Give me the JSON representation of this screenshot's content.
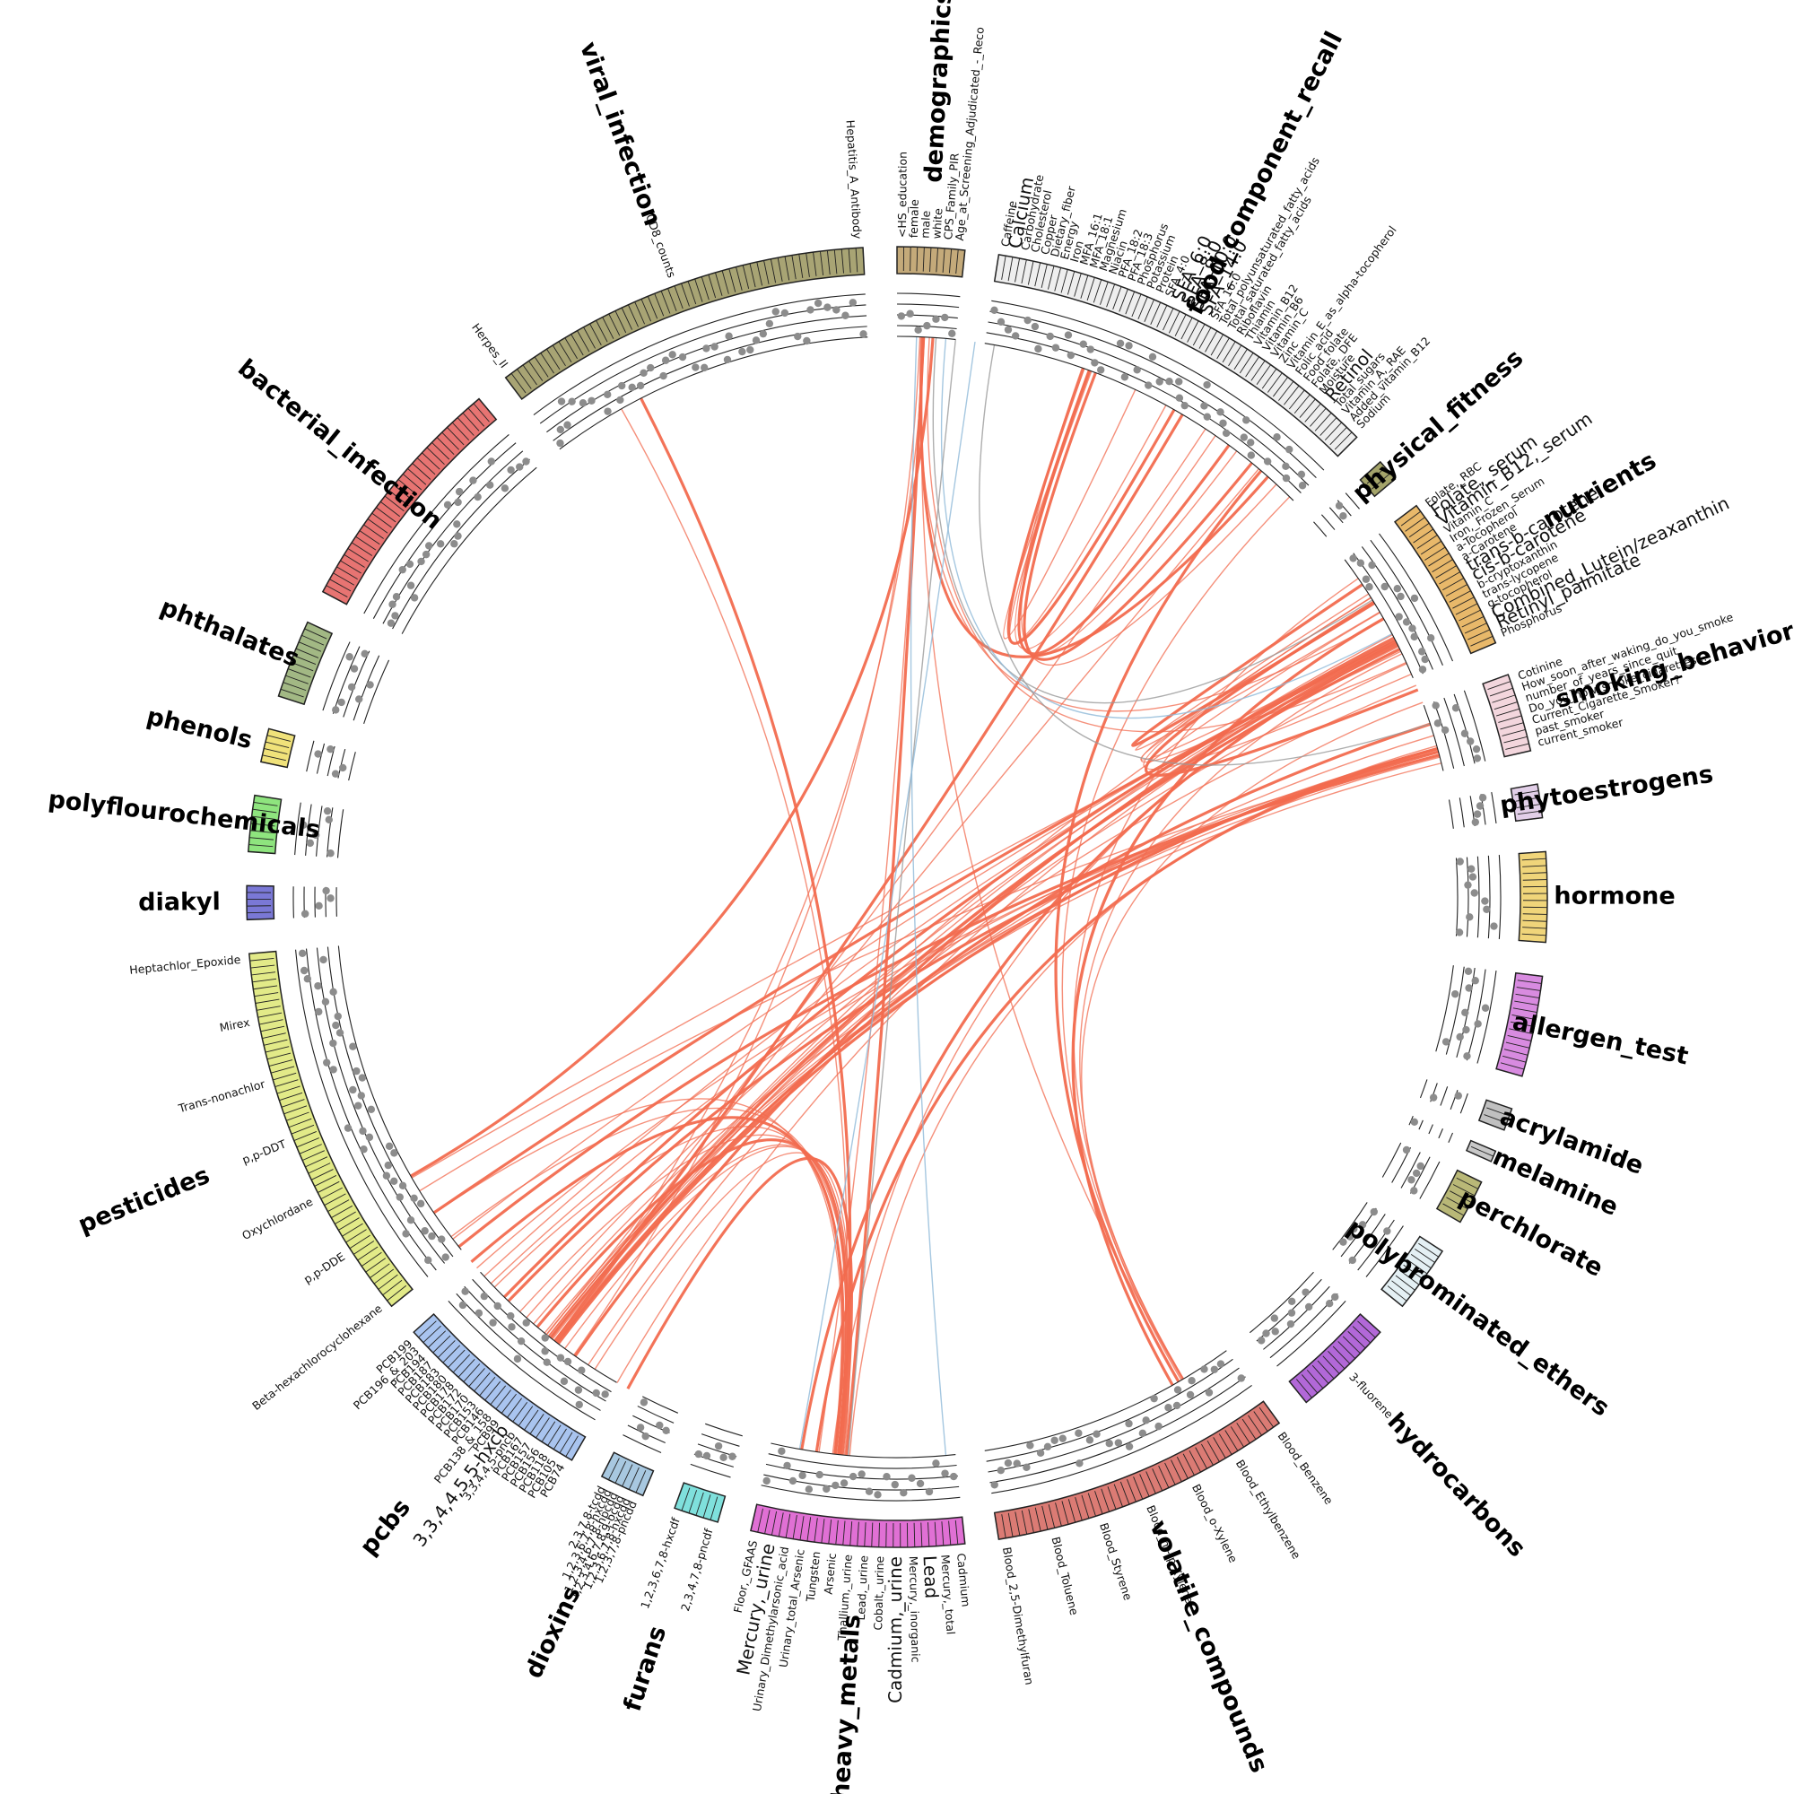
{
  "colors": {
    "link_main": "#f26b4f",
    "link_alt": "#8fb9d8",
    "link_gray": "#9a9a9a",
    "highlight_red": "#f26b4f",
    "highlight_blue": "#6fa8d6",
    "dot": "#8c8c8c"
  },
  "categories": [
    {
      "name": "demographics",
      "color": "#c4aa7a",
      "labels": [
        {
          "text": "<HS_education"
        },
        {
          "text": "female"
        },
        {
          "text": "male"
        },
        {
          "text": "white"
        },
        {
          "text": "CPS_Family_PIR"
        },
        {
          "text": "Age_at_Screening_Adjudicated_-_Reco"
        }
      ]
    },
    {
      "name": "food_component_recall",
      "color": "#eeeeee",
      "labels": [
        {
          "text": "Caffeine"
        },
        {
          "text": "Calcium",
          "hl": "red"
        },
        {
          "text": "Carbohydrate"
        },
        {
          "text": "Cholesterol"
        },
        {
          "text": "Copper"
        },
        {
          "text": "Dietary_fiber"
        },
        {
          "text": "Energy"
        },
        {
          "text": "Iron"
        },
        {
          "text": "MFA_16:1"
        },
        {
          "text": "MFA_18:1"
        },
        {
          "text": "Magnesium"
        },
        {
          "text": "Niacin"
        },
        {
          "text": "PFA_18:2"
        },
        {
          "text": "PFA_18:3"
        },
        {
          "text": "Phosphorus"
        },
        {
          "text": "Potassium"
        },
        {
          "text": "Protein"
        },
        {
          "text": "SFA_4:0"
        },
        {
          "text": "SFA_6:0",
          "hl": "red"
        },
        {
          "text": "SFA_8:0",
          "hl": "red"
        },
        {
          "text": "SFA_10:0",
          "hl": "red"
        },
        {
          "text": "SFA_14:0",
          "hl": "red"
        },
        {
          "text": "SFA_16:0"
        },
        {
          "text": "Total_polyunsaturated_fatty_acids"
        },
        {
          "text": "Total_saturated_fatty_acids"
        },
        {
          "text": "Riboflavin"
        },
        {
          "text": "Thiamin"
        },
        {
          "text": "Vitamin_B12"
        },
        {
          "text": "Vitamin_B6"
        },
        {
          "text": "Vitamin_C"
        },
        {
          "text": "Zinc"
        },
        {
          "text": "Vitamin_E_as_alpha-tocopherol"
        },
        {
          "text": "Folic_acid"
        },
        {
          "text": "Food_folate"
        },
        {
          "text": "Folate,_DFE"
        },
        {
          "text": "Moisture"
        },
        {
          "text": "Retinol",
          "hl": "red"
        },
        {
          "text": "Total_sugars"
        },
        {
          "text": "Vitamin_A,_RAE"
        },
        {
          "text": "Added_vitamin_B12"
        },
        {
          "text": "Sodium"
        }
      ]
    },
    {
      "name": "physical_fitness",
      "color": "#a4a46a",
      "labels": []
    },
    {
      "name": "nutrients",
      "color": "#e8b86a",
      "labels": [
        {
          "text": "Folate,_RBC"
        },
        {
          "text": "Folate,_serum",
          "hl": "red"
        },
        {
          "text": "Vitamin_B12,_serum",
          "hl": "red"
        },
        {
          "text": "Vitamin_C"
        },
        {
          "text": "Iron,_Frozen_Serum"
        },
        {
          "text": "a-Tocopherol"
        },
        {
          "text": "a-Carotene"
        },
        {
          "text": "trans-b-carotene",
          "hl": "red"
        },
        {
          "text": "cis-b-carotene",
          "hl": "red"
        },
        {
          "text": "b-cryptoxanthin"
        },
        {
          "text": "trans-lycopene"
        },
        {
          "text": "g-tocopherol"
        },
        {
          "text": "Combined_Lutein/zeaxanthin",
          "hl": "red"
        },
        {
          "text": "Retinyl_palmitate",
          "hl": "red"
        },
        {
          "text": "Phosphorus"
        }
      ]
    },
    {
      "name": "smoking_behavior",
      "color": "#f3d6dd",
      "labels": [
        {
          "text": "Cotinine"
        },
        {
          "text": "How_soon_after_waking_do_you_smoke"
        },
        {
          "text": "number_of_years_since_quit"
        },
        {
          "text": "Do_you_now_smoke_cigarettes..."
        },
        {
          "text": "Current_Cigarette_Smoker?"
        },
        {
          "text": "past_smoker"
        },
        {
          "text": "current_smoker"
        }
      ]
    },
    {
      "name": "phytoestrogens",
      "color": "#e2cfe8",
      "labels": []
    },
    {
      "name": "hormone",
      "color": "#f0d57a",
      "labels": []
    },
    {
      "name": "allergen_test",
      "color": "#d88be0",
      "labels": []
    },
    {
      "name": "acrylamide",
      "color": "#c0c0c0",
      "labels": []
    },
    {
      "name": "melamine",
      "color": "#c8c8c8",
      "labels": []
    },
    {
      "name": "perchlorate",
      "color": "#b9b877",
      "labels": []
    },
    {
      "name": "polybrominated_ethers",
      "color": "#e4f0f4",
      "labels": []
    },
    {
      "name": "hydrocarbons",
      "color": "#b268d8",
      "labels": [
        {
          "text": "3-fluorene"
        }
      ]
    },
    {
      "name": "volatile_compounds",
      "color": "#db7b74",
      "labels": [
        {
          "text": "Blood_Benzene"
        },
        {
          "text": "Blood_Ethylbenzene"
        },
        {
          "text": "Blood_o-Xylene"
        },
        {
          "text": "Blood_m-/p-Xylene"
        },
        {
          "text": "Blood_Styrene"
        },
        {
          "text": "Blood_Toluene"
        },
        {
          "text": "Blood_2,5-Dimethylfuran"
        }
      ]
    },
    {
      "name": "heavy_metals",
      "color": "#e070d4",
      "labels": [
        {
          "text": "Cadmium"
        },
        {
          "text": "Mercury,_total"
        },
        {
          "text": "Lead",
          "hl": "red"
        },
        {
          "text": "Mercury,_inorganic"
        },
        {
          "text": "Cadmium,_urine",
          "hl": "blue"
        },
        {
          "text": "Cobalt,_urine"
        },
        {
          "text": "Lead,_urine"
        },
        {
          "text": "Thallium,_urine"
        },
        {
          "text": "Arsenic"
        },
        {
          "text": "Tungsten"
        },
        {
          "text": "Urinary_total_Arsenic"
        },
        {
          "text": "Urinary_Dimethylarsonic_acid"
        },
        {
          "text": "Mercury,_urine",
          "hl": "blue"
        },
        {
          "text": "Floor,_GFAAS"
        }
      ]
    },
    {
      "name": "furans",
      "color": "#7fe0dc",
      "labels": [
        {
          "text": "2,3,4,7,8-pncdf"
        },
        {
          "text": "1,2,3,6,7,8-hxcdf"
        }
      ]
    },
    {
      "name": "dioxins",
      "color": "#a8c8e0",
      "labels": [
        {
          "text": "1,2,3,7,8-pncdd"
        },
        {
          "text": "1,2,3,6,7,8-hxcdd"
        },
        {
          "text": "1,2,3,4,6,7,8,9-ocdd"
        },
        {
          "text": "1,2,3,4,6,7,8-hpcdd"
        },
        {
          "text": "1,2,3,6,7,8-hxcdd"
        },
        {
          "text": "2,3,7,8-tcdd"
        }
      ]
    },
    {
      "name": "pcbs",
      "color": "#a9c4ef",
      "labels": [
        {
          "text": "PCB74"
        },
        {
          "text": "PCB105"
        },
        {
          "text": "PCB118"
        },
        {
          "text": "PCB156"
        },
        {
          "text": "PCB157"
        },
        {
          "text": "PCB167"
        },
        {
          "text": "3,3,4,4,5-pncb"
        },
        {
          "text": "3,3,4,4,5,5-hxcb",
          "hl": "red"
        },
        {
          "text": "PCB99"
        },
        {
          "text": "PCB138_&_158"
        },
        {
          "text": "PCB146"
        },
        {
          "text": "PCB153"
        },
        {
          "text": "PCB170"
        },
        {
          "text": "PCB172"
        },
        {
          "text": "PCB178"
        },
        {
          "text": "PCB180"
        },
        {
          "text": "PCB183"
        },
        {
          "text": "PCB187"
        },
        {
          "text": "PCB194"
        },
        {
          "text": "PCB196_&_203"
        },
        {
          "text": "PCB199"
        }
      ]
    },
    {
      "name": "pesticides",
      "color": "#e2ea88",
      "labels": [
        {
          "text": "Beta-hexachlorocyclohexane"
        },
        {
          "text": "p,p-DDE"
        },
        {
          "text": "Oxychlordane"
        },
        {
          "text": "p,p-DDT"
        },
        {
          "text": "Trans-nonachlor"
        },
        {
          "text": "Mirex"
        },
        {
          "text": "Heptachlor_Epoxide"
        }
      ]
    },
    {
      "name": "diakyl",
      "color": "#7a78d6",
      "labels": []
    },
    {
      "name": "polyflourochemicals",
      "color": "#8ee47e",
      "labels": []
    },
    {
      "name": "phenols",
      "color": "#f0e27a",
      "labels": []
    },
    {
      "name": "phthalates",
      "color": "#a2b884",
      "labels": []
    },
    {
      "name": "bacterial_infection",
      "color": "#e77472",
      "labels": []
    },
    {
      "name": "viral_infection",
      "color": "#a8a474",
      "labels": [
        {
          "text": "Herpes_II"
        },
        {
          "text": "CD8_counts"
        },
        {
          "text": "Hepatitis_A_Antibody"
        }
      ]
    }
  ]
}
